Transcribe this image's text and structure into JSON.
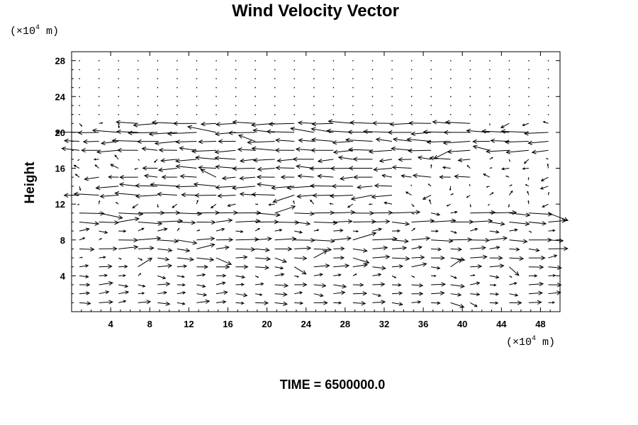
{
  "chart_data": {
    "type": "vector",
    "title": "Wind Velocity Vector",
    "xlabel": "",
    "ylabel": "Height",
    "x_unit": {
      "prefix": "(×10",
      "exp": "4",
      "suffix": " m)"
    },
    "y_unit": {
      "prefix": "(×10",
      "exp": "4",
      "suffix": " m)"
    },
    "xlim": [
      0,
      50
    ],
    "ylim": [
      0,
      29
    ],
    "xticks": [
      4,
      8,
      12,
      16,
      20,
      24,
      28,
      32,
      36,
      40,
      44,
      48
    ],
    "yticks": [
      4,
      8,
      12,
      16,
      20,
      24,
      28
    ],
    "grid_x": {
      "start": 0.8,
      "step": 2
    },
    "grid_y": {
      "start": 1,
      "step": 1,
      "count": 28
    },
    "max_vector_length": 3.0,
    "time_label": "TIME = 6500000.0",
    "strong_layers": [
      {
        "y": 21,
        "u_range": [
          -1.5,
          -2.6
        ],
        "x_from": 6,
        "x_to": 42
      },
      {
        "y": 20,
        "u_range": [
          -2.0,
          -3.0
        ],
        "x_from": 0,
        "x_to": 50
      },
      {
        "y": 19,
        "u_range": [
          -1.5,
          -2.8
        ],
        "x_from": 0,
        "x_to": 50
      },
      {
        "y": 18,
        "u_range": [
          -1.5,
          -2.5
        ],
        "x_from": 0,
        "x_to": 50
      },
      {
        "y": 17,
        "u_range": [
          -1.2,
          -2.2
        ],
        "x_from": 10,
        "x_to": 42
      },
      {
        "y": 16,
        "u_range": [
          -1.5,
          -2.5
        ],
        "x_from": 8,
        "x_to": 36
      },
      {
        "y": 15,
        "u_range": [
          -1.0,
          -2.0
        ],
        "x_from": 2,
        "x_to": 42
      },
      {
        "y": 14,
        "u_range": [
          -1.5,
          -2.8
        ],
        "x_from": 4,
        "x_to": 34
      },
      {
        "y": 13,
        "u_range": [
          -1.5,
          -2.6
        ],
        "x_from": 0,
        "x_to": 34
      },
      {
        "y": 11,
        "u_range": [
          2.0,
          3.0
        ],
        "x_from": 0,
        "x_to": 34
      },
      {
        "y": 11,
        "u_range": [
          2.0,
          2.8
        ],
        "x_from": 40,
        "x_to": 50
      },
      {
        "y": 10,
        "u_range": [
          1.5,
          2.6
        ],
        "x_from": 0,
        "x_to": 50
      },
      {
        "y": 8,
        "u_range": [
          1.5,
          2.5
        ],
        "x_from": 4,
        "x_to": 50
      },
      {
        "y": 7,
        "u_range": [
          1.0,
          2.0
        ],
        "x_from": 0,
        "x_to": 50
      },
      {
        "y": 6,
        "u_range": [
          1.0,
          1.8
        ],
        "x_from": 8,
        "x_to": 48
      },
      {
        "y": 5,
        "u_range": [
          0.8,
          1.6
        ],
        "x_from": 0,
        "x_to": 50
      },
      {
        "y": 3,
        "u_range": [
          0.6,
          1.5
        ],
        "x_from": 0,
        "x_to": 50
      },
      {
        "y": 2,
        "u_range": [
          0.6,
          1.4
        ],
        "x_from": 0,
        "x_to": 50
      },
      {
        "y": 1,
        "u_range": [
          0.6,
          1.4
        ],
        "x_from": 0,
        "x_to": 50
      }
    ]
  }
}
